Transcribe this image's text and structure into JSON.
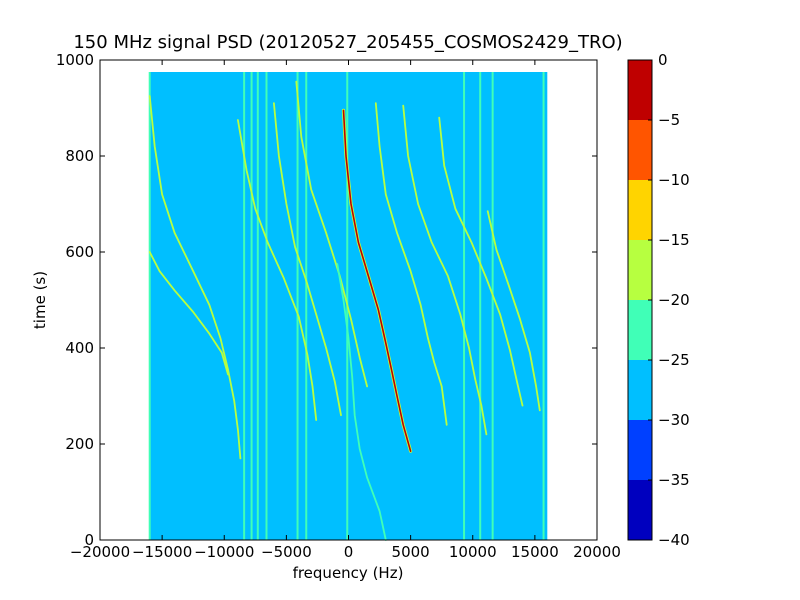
{
  "chart_data": {
    "type": "heatmap",
    "title": "150 MHz signal PSD (20120527_205455_COSMOS2429_TRO)",
    "xlabel": "frequency (Hz)",
    "ylabel": "time (s)",
    "xlim": [
      -20000,
      20000
    ],
    "ylim": [
      0,
      1000
    ],
    "xticks": [
      -20000,
      -15000,
      -10000,
      -5000,
      0,
      5000,
      10000,
      15000,
      20000
    ],
    "xtick_labels": [
      "−20000",
      "−15000",
      "−10000",
      "−5000",
      "0",
      "5000",
      "10000",
      "15000",
      "20000"
    ],
    "yticks": [
      0,
      200,
      400,
      600,
      800,
      1000
    ],
    "ytick_labels": [
      "0",
      "200",
      "400",
      "600",
      "800",
      "1000"
    ],
    "data_extent": {
      "freq": [
        -16000,
        16000
      ],
      "time": [
        0,
        975
      ]
    },
    "background_level": -27.5,
    "colorbar": {
      "range": [
        -40,
        0
      ],
      "ticks": [
        0,
        -5,
        -10,
        -15,
        -20,
        -25,
        -30,
        -35,
        -40
      ],
      "tick_labels": [
        "0",
        "−5",
        "−10",
        "−15",
        "−20",
        "−25",
        "−30",
        "−35",
        "−40"
      ],
      "bands": [
        {
          "from": -40,
          "to": -35,
          "color": "#0000bf"
        },
        {
          "from": -35,
          "to": -30,
          "color": "#0040ff"
        },
        {
          "from": -30,
          "to": -25,
          "color": "#00bfff"
        },
        {
          "from": -25,
          "to": -20,
          "color": "#40ffb7"
        },
        {
          "from": -20,
          "to": -15,
          "color": "#b7ff40"
        },
        {
          "from": -15,
          "to": -10,
          "color": "#ffd400"
        },
        {
          "from": -10,
          "to": -5,
          "color": "#ff5500"
        },
        {
          "from": -5,
          "to": 0,
          "color": "#bf0000"
        }
      ]
    },
    "vertical_lines": [
      {
        "freq": -16000,
        "level": -22.5
      },
      {
        "freq": -8400,
        "level": -22.5
      },
      {
        "freq": -7800,
        "level": -22.5
      },
      {
        "freq": -7300,
        "level": -22.5
      },
      {
        "freq": -6600,
        "level": -22.5
      },
      {
        "freq": -4100,
        "level": -22.5
      },
      {
        "freq": -3400,
        "level": -22.5
      },
      {
        "freq": -100,
        "level": -22.5
      },
      {
        "freq": 9300,
        "level": -22.5
      },
      {
        "freq": 10600,
        "level": -22.5
      },
      {
        "freq": 11600,
        "level": -22.5
      },
      {
        "freq": 15700,
        "level": -22.5
      }
    ],
    "series": [
      {
        "level": -17.5,
        "points": [
          [
            -16000,
            600
          ],
          [
            -15200,
            560
          ],
          [
            -14000,
            520
          ],
          [
            -12500,
            475
          ],
          [
            -11200,
            430
          ],
          [
            -10200,
            390
          ],
          [
            -9700,
            345
          ]
        ]
      },
      {
        "level": -17.5,
        "points": [
          [
            -16000,
            925
          ],
          [
            -15600,
            820
          ],
          [
            -15000,
            720
          ],
          [
            -14000,
            640
          ],
          [
            -12500,
            560
          ],
          [
            -11200,
            490
          ],
          [
            -10300,
            420
          ],
          [
            -9700,
            355
          ],
          [
            -9200,
            290
          ],
          [
            -8900,
            230
          ],
          [
            -8700,
            170
          ]
        ]
      },
      {
        "level": -17.5,
        "points": [
          [
            -8900,
            875
          ],
          [
            -8200,
            770
          ],
          [
            -7500,
            690
          ],
          [
            -6500,
            620
          ],
          [
            -5200,
            545
          ],
          [
            -4000,
            465
          ],
          [
            -3300,
            385
          ],
          [
            -2900,
            320
          ],
          [
            -2600,
            250
          ]
        ]
      },
      {
        "level": -15.0,
        "points": [
          [
            -6000,
            910
          ],
          [
            -5600,
            800
          ],
          [
            -5000,
            700
          ],
          [
            -4300,
            610
          ],
          [
            -3400,
            540
          ],
          [
            -2600,
            470
          ],
          [
            -1800,
            400
          ],
          [
            -1100,
            330
          ],
          [
            -600,
            260
          ]
        ]
      },
      {
        "level": -15.0,
        "points": [
          [
            -4200,
            955
          ],
          [
            -3800,
            840
          ],
          [
            -3000,
            730
          ],
          [
            -1800,
            640
          ],
          [
            -700,
            550
          ],
          [
            200,
            460
          ],
          [
            900,
            380
          ],
          [
            1500,
            320
          ]
        ]
      },
      {
        "level": -2.5,
        "points": [
          [
            -400,
            895
          ],
          [
            -200,
            800
          ],
          [
            200,
            700
          ],
          [
            800,
            620
          ],
          [
            1600,
            550
          ],
          [
            2400,
            480
          ],
          [
            3000,
            410
          ],
          [
            3500,
            350
          ],
          [
            3900,
            300
          ],
          [
            4400,
            240
          ],
          [
            5000,
            185
          ]
        ]
      },
      {
        "level": -15.0,
        "points": [
          [
            2200,
            910
          ],
          [
            2500,
            820
          ],
          [
            3000,
            720
          ],
          [
            3900,
            640
          ],
          [
            5000,
            560
          ],
          [
            5800,
            490
          ],
          [
            6400,
            420
          ],
          [
            6900,
            370
          ],
          [
            7500,
            320
          ],
          [
            7900,
            240
          ]
        ]
      },
      {
        "level": -15.0,
        "points": [
          [
            4400,
            905
          ],
          [
            4800,
            800
          ],
          [
            5600,
            700
          ],
          [
            6700,
            620
          ],
          [
            8000,
            550
          ],
          [
            9000,
            470
          ],
          [
            9700,
            400
          ],
          [
            10200,
            335
          ],
          [
            10700,
            280
          ],
          [
            11100,
            220
          ]
        ]
      },
      {
        "level": -17.5,
        "points": [
          [
            7300,
            880
          ],
          [
            7700,
            780
          ],
          [
            8600,
            690
          ],
          [
            9900,
            620
          ],
          [
            11100,
            545
          ],
          [
            12200,
            470
          ],
          [
            13000,
            395
          ],
          [
            13600,
            325
          ],
          [
            14000,
            280
          ]
        ]
      },
      {
        "level": -17.5,
        "points": [
          [
            11200,
            685
          ],
          [
            11900,
            605
          ],
          [
            12900,
            530
          ],
          [
            13800,
            460
          ],
          [
            14600,
            390
          ],
          [
            15100,
            320
          ],
          [
            15400,
            270
          ]
        ]
      },
      {
        "level": -22.5,
        "points": [
          [
            -900,
            575
          ],
          [
            -400,
            500
          ],
          [
            0,
            420
          ],
          [
            300,
            340
          ],
          [
            500,
            260
          ],
          [
            900,
            190
          ],
          [
            1500,
            130
          ],
          [
            2500,
            60
          ],
          [
            3000,
            0
          ]
        ]
      }
    ]
  }
}
